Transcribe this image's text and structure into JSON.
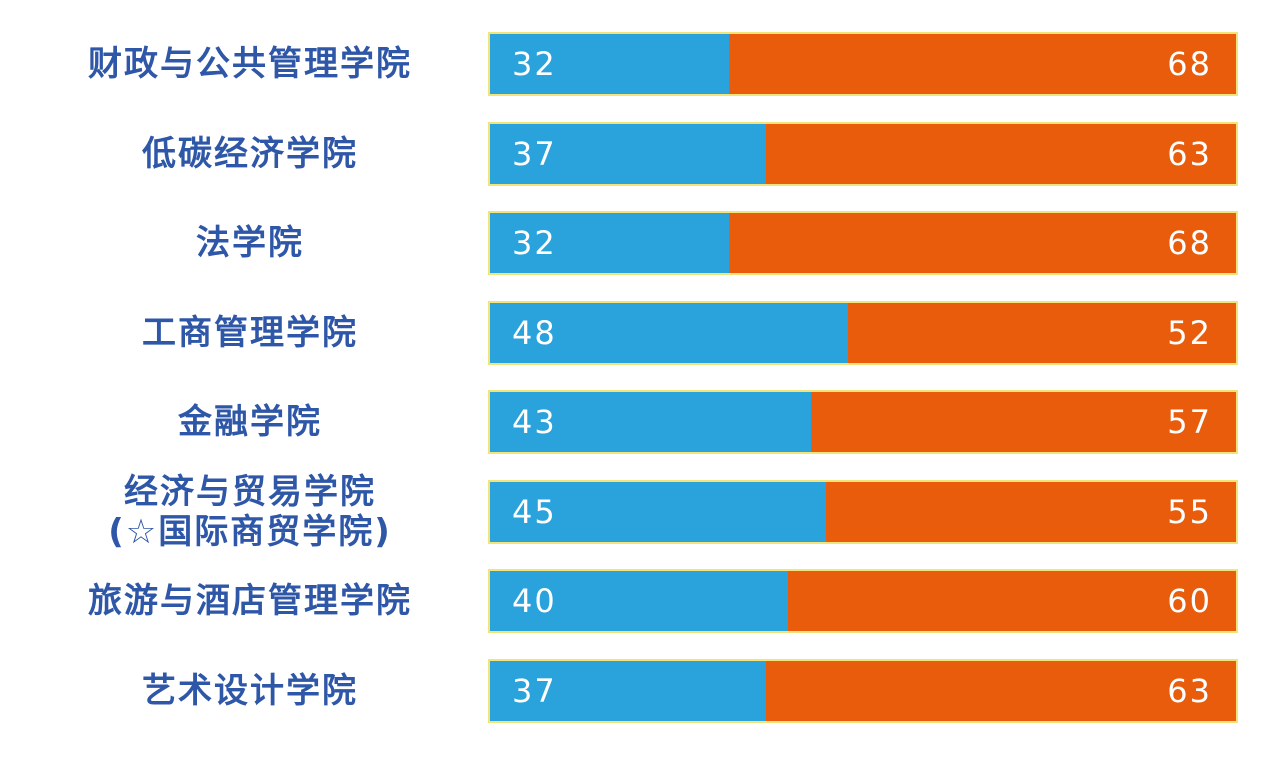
{
  "chart_data": {
    "type": "bar",
    "orientation": "horizontal",
    "stacked": "100%",
    "categories": [
      [
        "财政与公共管理学院"
      ],
      [
        "低碳经济学院"
      ],
      [
        "法学院"
      ],
      [
        "工商管理学院"
      ],
      [
        "金融学院"
      ],
      [
        "经济与贸易学院",
        "(☆国际商贸学院)"
      ],
      [
        "旅游与酒店管理学院"
      ],
      [
        "艺术设计学院"
      ]
    ],
    "series": [
      {
        "color": "#2aa3dc",
        "values": [
          32,
          37,
          32,
          48,
          43,
          45,
          40,
          37
        ]
      },
      {
        "color": "#e85c0c",
        "values": [
          68,
          63,
          68,
          52,
          57,
          55,
          60,
          63
        ]
      }
    ],
    "xlim": [
      0,
      100
    ],
    "grid": false,
    "legend": "none",
    "colors": {
      "label_text": "#2f57a8",
      "value_text": "#ffffff",
      "bar_border": "#f3e47a"
    }
  }
}
